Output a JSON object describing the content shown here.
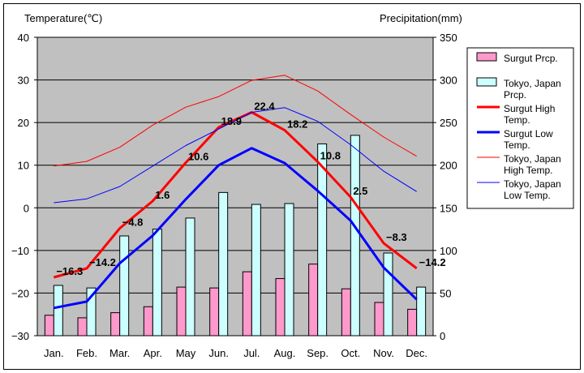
{
  "chart_data": {
    "type": "bar+line",
    "title": "",
    "ylabel_left": "Temperature(℃)",
    "ylabel_right": "Precipitation(mm)",
    "ylim_left": [
      -30,
      40
    ],
    "ylim_right": [
      0,
      350
    ],
    "left_ticks": [
      "40",
      "30",
      "20",
      "10",
      "0",
      "−10",
      "−20",
      "−30"
    ],
    "right_ticks": [
      "350",
      "300",
      "250",
      "200",
      "150",
      "100",
      "50",
      "0"
    ],
    "categories": [
      "Jan.",
      "Feb.",
      "Mar.",
      "Apr.",
      "May",
      "Jun.",
      "Jul.",
      "Aug.",
      "Sep.",
      "Oct.",
      "Nov.",
      "Dec."
    ],
    "grid": true,
    "legend_position": "right",
    "series": [
      {
        "name": "Surgut Prcp.",
        "kind": "bar",
        "axis": "right",
        "color": "#ff99cc",
        "values": [
          24,
          21,
          27,
          34,
          57,
          56,
          75,
          67,
          84,
          55,
          39,
          31
        ]
      },
      {
        "name": "Tokyo, Japan Prcp.",
        "kind": "bar",
        "axis": "right",
        "color": "#ccffff",
        "values": [
          59,
          56,
          117,
          125,
          138,
          168,
          154,
          155,
          225,
          235,
          97,
          57
        ]
      },
      {
        "name": "Surgut High Temp.",
        "kind": "line",
        "axis": "left",
        "color": "#ff0000",
        "width": 3,
        "values": [
          -16.3,
          -14.2,
          -4.8,
          1.6,
          10.6,
          18.9,
          22.4,
          18.2,
          10.8,
          2.5,
          -8.3,
          -14.2
        ]
      },
      {
        "name": "Surgut Low Temp.",
        "kind": "line",
        "axis": "left",
        "color": "#0000ff",
        "width": 3,
        "values": [
          -23.5,
          -22,
          -13,
          -6.5,
          2,
          10,
          14,
          10.5,
          4,
          -3,
          -14,
          -21.5
        ]
      },
      {
        "name": "Tokyo, Japan High Temp.",
        "kind": "line",
        "axis": "left",
        "color": "#ff0000",
        "width": 1,
        "values": [
          9.8,
          10.9,
          14.2,
          19.4,
          23.6,
          26.1,
          29.9,
          31.1,
          27.4,
          21.9,
          16.6,
          12.1
        ]
      },
      {
        "name": "Tokyo, Japan Low Temp.",
        "kind": "line",
        "axis": "left",
        "color": "#0000ff",
        "width": 1,
        "values": [
          1.2,
          2.1,
          5.0,
          9.8,
          14.6,
          18.5,
          22.4,
          23.5,
          20.3,
          14.8,
          8.6,
          3.8
        ]
      }
    ],
    "data_labels": {
      "series": "Surgut High Temp.",
      "texts": [
        "−16.3",
        "−14.2",
        "−4.8",
        "1.6",
        "10.6",
        "18.9",
        "22.4",
        "18.2",
        "10.8",
        "2.5",
        "−8.3",
        "−14.2"
      ]
    },
    "legend": [
      {
        "lines": [
          "Surgut Prcp."
        ],
        "swatch": "bar",
        "color": "#ff99cc"
      },
      {
        "lines": [
          "Tokyo, Japan",
          "Prcp."
        ],
        "swatch": "bar",
        "color": "#ccffff"
      },
      {
        "lines": [
          "Surgut High",
          "Temp."
        ],
        "swatch": "line",
        "color": "#ff0000",
        "width": 3
      },
      {
        "lines": [
          "Surgut Low",
          "Temp."
        ],
        "swatch": "line",
        "color": "#0000ff",
        "width": 3
      },
      {
        "lines": [
          "Tokyo, Japan",
          "High Temp."
        ],
        "swatch": "line",
        "color": "#ff0000",
        "width": 1
      },
      {
        "lines": [
          "Tokyo, Japan",
          "Low Temp."
        ],
        "swatch": "line",
        "color": "#0000ff",
        "width": 1
      }
    ],
    "plot_background": "#c0c0c0"
  }
}
